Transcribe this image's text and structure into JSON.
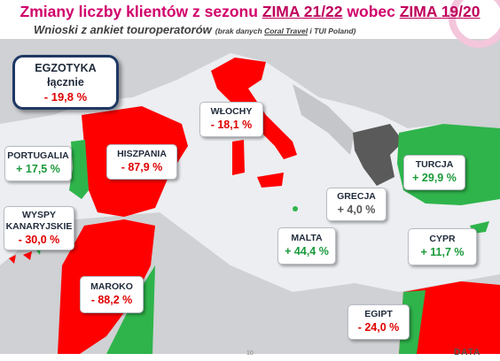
{
  "header": {
    "title_parts": [
      "Zmiany liczby klientów z sezonu ",
      "ZIMA 21/22",
      " wobec ",
      "ZIMA 19/20"
    ],
    "subtitle": "Wnioski z ankiet touroperatorów",
    "note_parts": [
      "(brak danych ",
      "Coral Travel",
      " i TUI Poland)"
    ]
  },
  "regions": [
    {
      "name_lines": [
        "EGZOTYKA",
        "łącznie"
      ],
      "value": "- 19,8 %",
      "color": "#e00000"
    },
    {
      "name_lines": [
        "WŁOCHY"
      ],
      "value": "- 18,1 %",
      "color": "#e00000"
    },
    {
      "name_lines": [
        "PORTUGALIA"
      ],
      "value": "+ 17,5 %",
      "color": "#1a9a3a"
    },
    {
      "name_lines": [
        "HISZPANIA"
      ],
      "value": "- 87,9 %",
      "color": "#e00000"
    },
    {
      "name_lines": [
        "TURCJA"
      ],
      "value": "+ 29,9 %",
      "color": "#1a9a3a"
    },
    {
      "name_lines": [
        "GRECJA"
      ],
      "value": "+ 4,0 %",
      "color": "#555555"
    },
    {
      "name_lines": [
        "WYSPY",
        "KANARYJSKIE"
      ],
      "value": "- 30,0 %",
      "color": "#e00000"
    },
    {
      "name_lines": [
        "MALTA"
      ],
      "value": "+ 44,4 %",
      "color": "#1a9a3a"
    },
    {
      "name_lines": [
        "CYPR"
      ],
      "value": "+ 11,7 %",
      "color": "#1a9a3a"
    },
    {
      "name_lines": [
        "MAROKO"
      ],
      "value": "- 88,2 %",
      "color": "#e00000"
    },
    {
      "name_lines": [
        "EGIPT"
      ],
      "value": "- 24,0 %",
      "color": "#e00000"
    }
  ],
  "footer": {
    "page": "10",
    "logo": "DATA"
  }
}
